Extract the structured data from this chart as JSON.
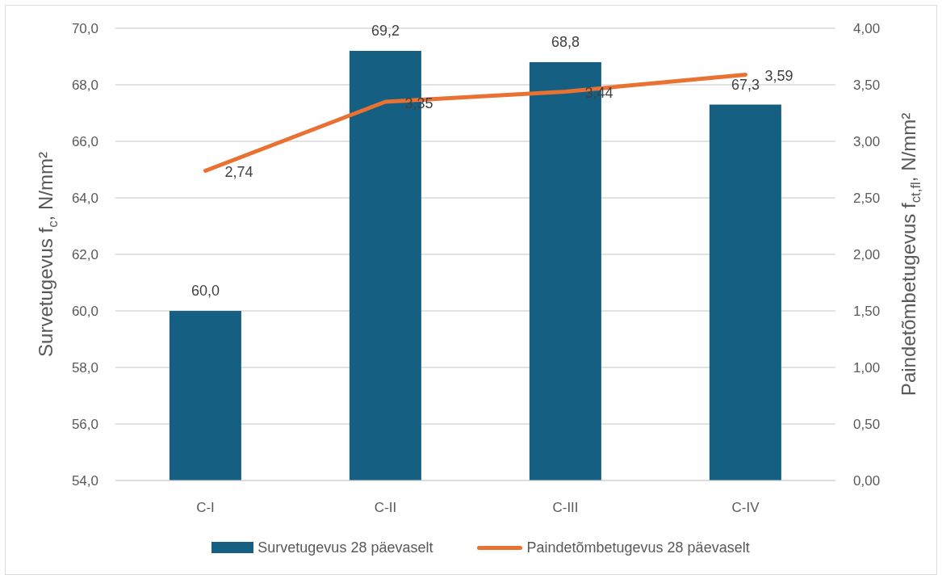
{
  "chart_data": {
    "type": "bar",
    "categories": [
      "C-I",
      "C-II",
      "C-III",
      "C-IV"
    ],
    "ylabel": "Survetugevus f$_{c}$, N/mm²",
    "y2label": "Paindetõmbetugevus f$_{ct,fl}$, N/mm²",
    "series": [
      {
        "name": "Survetugevus 28 päevaselt",
        "color": "#156082",
        "values": [
          60.0,
          69.2,
          68.8,
          67.3
        ],
        "value_labels": [
          "60,0",
          "69,2",
          "68,8",
          "67,3"
        ]
      },
      {
        "name": "Paindetõmbetugevus 28 päevaselt",
        "type": "line",
        "axis": "y2",
        "color": "#e97132",
        "values": [
          2.74,
          3.35,
          3.44,
          3.59
        ],
        "value_labels": [
          "2,74",
          "3,35",
          "3,44",
          "3,59"
        ]
      }
    ],
    "ylim": [
      54,
      70
    ],
    "yticks": [
      {
        "value": 54,
        "label": "54,0"
      },
      {
        "value": 56,
        "label": "56,0"
      },
      {
        "value": 58,
        "label": "58,0"
      },
      {
        "value": 60,
        "label": "60,0"
      },
      {
        "value": 62,
        "label": "62,0"
      },
      {
        "value": 64,
        "label": "64,0"
      },
      {
        "value": 66,
        "label": "66,0"
      },
      {
        "value": 68,
        "label": "68,0"
      },
      {
        "value": 70,
        "label": "70,0"
      }
    ],
    "y2lim": [
      0,
      4
    ],
    "y2ticks": [
      {
        "value": 0,
        "label": "0,00"
      },
      {
        "value": 0.5,
        "label": "0,50"
      },
      {
        "value": 1,
        "label": "1,00"
      },
      {
        "value": 1.5,
        "label": "1,50"
      },
      {
        "value": 2,
        "label": "2,00"
      },
      {
        "value": 2.5,
        "label": "2,50"
      },
      {
        "value": 3,
        "label": "3,00"
      },
      {
        "value": 3.5,
        "label": "3,50"
      },
      {
        "value": 4,
        "label": "4,00"
      }
    ],
    "grid": "y",
    "legend": "bottom"
  }
}
